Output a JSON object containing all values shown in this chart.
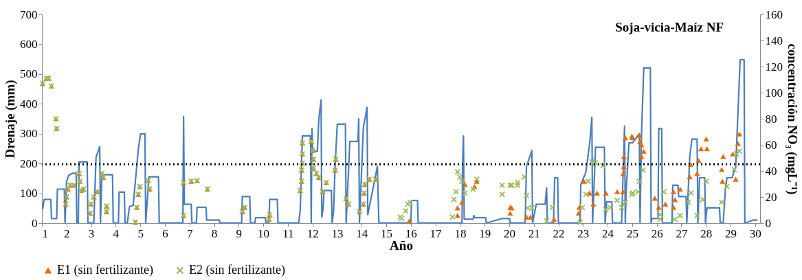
{
  "chart_data": {
    "type": "line",
    "title": "Soja-vicia-Maíz NF",
    "xlabel": "Año",
    "ylabel": "Drenaje (mm)",
    "y2label": "concentración NO₃ (mgL⁻¹)",
    "xlim": [
      1,
      30.2
    ],
    "xticks": [
      1,
      2,
      3,
      4,
      5,
      6,
      7,
      8,
      9,
      10,
      11,
      12,
      13,
      14,
      15,
      16,
      17,
      18,
      19,
      20,
      21,
      22,
      23,
      24,
      25,
      26,
      27,
      28,
      29,
      30
    ],
    "ylim": [
      0,
      700
    ],
    "yticks": [
      0,
      100,
      200,
      300,
      400,
      500,
      600,
      700
    ],
    "y2lim": [
      0,
      160
    ],
    "y2ticks": [
      0,
      20,
      40,
      60,
      80,
      100,
      120,
      140,
      160
    ],
    "grid": false,
    "legend": "bottom",
    "line_style": "solid",
    "ref_lines": [
      {
        "axis": "y2",
        "value": 45,
        "color": "#000000",
        "line_style": "dotted"
      }
    ],
    "series": [
      {
        "type": "line",
        "color": "#4a7ebb",
        "x": [
          1.03,
          1.09,
          1.36,
          1.39,
          1.6,
          1.63,
          1.91,
          1.94,
          2.0,
          2.09,
          2.24,
          2.39,
          2.42,
          2.48,
          2.51,
          2.84,
          2.87,
          3.11,
          3.2,
          3.35,
          3.38,
          3.44,
          3.87,
          3.9,
          4.11,
          4.14,
          4.35,
          4.38,
          4.47,
          4.56,
          4.71,
          4.92,
          5.01,
          5.19,
          5.22,
          5.35,
          5.74,
          5.77,
          6.73,
          6.76,
          6.79,
          7.07,
          7.1,
          7.28,
          7.31,
          7.67,
          7.7,
          8.21,
          8.24,
          9.12,
          9.15,
          9.45,
          9.48,
          9.66,
          9.69,
          10.08,
          10.11,
          10.23,
          10.26,
          10.57,
          10.6,
          11.44,
          11.5,
          11.59,
          11.92,
          11.95,
          11.98,
          12.01,
          12.2,
          12.26,
          12.35,
          12.38,
          12.44,
          12.47,
          12.77,
          12.8,
          12.86,
          12.92,
          13.01,
          13.34,
          13.37,
          13.52,
          13.85,
          13.88,
          13.91,
          14.07,
          14.22,
          14.25,
          14.64,
          14.7,
          16.0,
          16.03,
          16.27,
          16.3,
          18.08,
          18.11,
          18.14,
          18.17,
          18.53,
          18.56,
          18.59,
          19.04,
          19.07,
          19.71,
          20.01,
          20.04,
          20.65,
          20.7,
          20.92,
          20.95,
          21.1,
          21.46,
          21.52,
          21.55,
          21.8,
          21.85,
          21.97,
          22.0,
          22.88,
          22.91,
          23.12,
          23.27,
          23.36,
          23.39,
          23.51,
          23.87,
          23.9,
          23.96,
          24.17,
          24.2,
          24.57,
          24.69,
          24.72,
          24.75,
          24.87,
          25.02,
          25.29,
          25.32,
          25.38,
          25.47,
          25.74,
          25.77,
          25.8,
          26.05,
          26.08,
          26.2,
          26.23,
          26.62,
          26.65,
          26.86,
          26.89,
          27.19,
          27.22,
          27.34,
          27.43,
          27.64,
          27.67,
          27.74,
          27.95,
          27.98,
          28.04,
          28.55,
          28.58,
          28.7,
          28.79,
          28.85,
          29.06,
          29.21,
          29.39,
          29.55,
          29.58,
          29.76,
          29.91,
          30.1
        ],
        "values": [
          46,
          79,
          79,
          15,
          15,
          114,
          114,
          0,
          139,
          160,
          167,
          167,
          0,
          0,
          205,
          205,
          0,
          0,
          220,
          256,
          0,
          162,
          162,
          0,
          0,
          104,
          104,
          0,
          0,
          55,
          60,
          248,
          299,
          299,
          0,
          155,
          155,
          0,
          0,
          357,
          63,
          63,
          0,
          0,
          53,
          53,
          10,
          10,
          0,
          0,
          89,
          89,
          0,
          0,
          18,
          18,
          0,
          0,
          79,
          79,
          0,
          0,
          40,
          292,
          292,
          0,
          317,
          241,
          241,
          350,
          413,
          20,
          53,
          109,
          109,
          0,
          40,
          190,
          332,
          332,
          0,
          274,
          274,
          350,
          0,
          320,
          388,
          28,
          190,
          0,
          0,
          76,
          76,
          0,
          0,
          223,
          292,
          13,
          13,
          25,
          18,
          18,
          0,
          15,
          15,
          0,
          0,
          190,
          243,
          0,
          63,
          63,
          117,
          0,
          0,
          152,
          152,
          0,
          0,
          129,
          172,
          266,
          355,
          0,
          254,
          254,
          0,
          71,
          71,
          0,
          0,
          325,
          0,
          100,
          269,
          269,
          300,
          0,
          300,
          520,
          520,
          0,
          15,
          15,
          317,
          317,
          0,
          0,
          127,
          127,
          89,
          89,
          0,
          223,
          282,
          282,
          0,
          152,
          152,
          0,
          51,
          51,
          0,
          0,
          114,
          152,
          152,
          190,
          548,
          548,
          0,
          5,
          10,
          10
        ]
      },
      {
        "type": "scatter",
        "name": "E1 (sin fertilizante)",
        "color": "#e46c0a",
        "marker": "triangle",
        "axis": "y2",
        "x": [
          1.03,
          1.18,
          1.27,
          1.39,
          1.57,
          1.6,
          1.97,
          2.0,
          2.06,
          2.15,
          2.3,
          2.51,
          2.54,
          2.6,
          2.69,
          2.96,
          2.99,
          3.11,
          3.26,
          3.44,
          3.5,
          3.63,
          3.63,
          4.8,
          4.86,
          4.92,
          4.98,
          5.32,
          5.38,
          6.76,
          6.76,
          7.07,
          7.31,
          7.73,
          9.15,
          9.24,
          10.23,
          10.26,
          11.5,
          11.56,
          11.56,
          11.59,
          11.59,
          11.59,
          11.95,
          12.01,
          12.04,
          12.04,
          12.16,
          12.26,
          12.41,
          12.56,
          12.92,
          12.95,
          13.37,
          13.46,
          13.91,
          14.07,
          14.1,
          14.13,
          14.31,
          14.58,
          15.94,
          17.9,
          17.9,
          18.08,
          18.2,
          18.59,
          18.68,
          20.04,
          20.04,
          20.1,
          20.7,
          20.86,
          21.82,
          22.82,
          22.85,
          23.03,
          23.27,
          23.42,
          23.57,
          23.93,
          24.39,
          24.63,
          24.63,
          24.66,
          24.66,
          24.72,
          25.02,
          24.99,
          25.29,
          25.32,
          25.38,
          25.47,
          25.38,
          25.92,
          26.08,
          26.35,
          26.68,
          26.74,
          26.68,
          26.95,
          27.34,
          27.37,
          27.64,
          27.7,
          27.8,
          28.01,
          28.04,
          28.7,
          28.64,
          28.67,
          29.09,
          29.21,
          29.3,
          29.36
        ],
        "values": [
          107,
          111,
          111,
          105,
          80,
          72.5,
          14.5,
          20,
          26,
          29,
          29,
          38,
          32,
          25,
          26,
          7.5,
          14.5,
          20,
          24,
          38,
          35,
          13,
          8.7,
          0.6,
          12,
          22,
          28,
          32.5,
          26,
          5.8,
          31,
          32,
          32.5,
          26,
          8.7,
          12,
          2.9,
          6.4,
          25,
          32,
          40.6,
          46,
          53,
          61.5,
          62.6,
          55.7,
          49,
          42,
          38,
          35,
          24,
          31,
          40.6,
          49,
          19,
          14.5,
          8.7,
          14.5,
          23,
          29.6,
          33.6,
          33.6,
          1.7,
          5.8,
          11.6,
          16,
          29.6,
          28,
          32,
          7.5,
          12,
          11.6,
          4.6,
          4.6,
          2.9,
          7.5,
          12,
          32,
          23,
          14.5,
          23,
          23,
          24,
          24,
          37.7,
          43.5,
          51,
          65.5,
          65.5,
          66.7,
          67.3,
          62.6,
          60,
          55,
          51,
          19,
          12,
          14.5,
          24,
          18,
          12,
          26,
          35.4,
          45,
          38,
          48,
          57,
          64.4,
          57,
          51,
          41,
          32,
          53,
          33.6,
          61,
          68.4
        ]
      },
      {
        "type": "scatter",
        "name": "E2 (sin fertilizante)",
        "color": "#9bbb59",
        "marker": "cross",
        "axis": "y2",
        "x": [
          1.03,
          1.18,
          1.27,
          1.39,
          1.57,
          1.6,
          1.97,
          2.0,
          2.06,
          2.15,
          2.3,
          2.51,
          2.54,
          2.6,
          2.69,
          2.96,
          2.99,
          3.11,
          3.26,
          3.44,
          3.5,
          3.63,
          3.63,
          4.8,
          4.86,
          4.92,
          4.98,
          5.32,
          5.38,
          6.76,
          6.76,
          7.07,
          7.31,
          7.73,
          9.15,
          9.24,
          10.23,
          10.26,
          11.5,
          11.56,
          11.56,
          11.59,
          11.59,
          11.59,
          11.95,
          12.01,
          12.04,
          12.04,
          12.16,
          12.26,
          12.41,
          12.56,
          12.92,
          12.95,
          13.37,
          13.46,
          13.91,
          14.07,
          14.1,
          14.13,
          14.31,
          14.58,
          15.57,
          15.63,
          15.79,
          15.88,
          15.97,
          17.69,
          17.75,
          17.84,
          17.9,
          17.99,
          18.08,
          18.2,
          18.53,
          18.68,
          19.71,
          19.71,
          20.04,
          20.34,
          20.1,
          20.34,
          20.61,
          20.7,
          20.76,
          20.92,
          21.52,
          21.76,
          22.88,
          22.97,
          23.12,
          23.21,
          23.36,
          23.51,
          23.81,
          23.93,
          24.11,
          24.39,
          24.57,
          24.72,
          25.02,
          25.23,
          24.99,
          25.29,
          25.44,
          26.14,
          26.14,
          26.29,
          26.74,
          26.95,
          27.28,
          27.4,
          27.64,
          27.86,
          28.01,
          28.64,
          28.85,
          29.15,
          29.24,
          29.36
        ],
        "values": [
          107,
          111,
          111,
          105,
          80,
          72.5,
          14.5,
          20,
          26,
          29,
          29,
          38,
          32,
          25,
          26,
          7.5,
          14.5,
          20,
          24,
          38,
          35,
          13,
          8.7,
          0.6,
          12,
          22,
          28,
          32.5,
          26,
          5.8,
          31,
          32,
          32.5,
          26,
          8.7,
          12,
          2.9,
          6.4,
          25,
          32,
          40.6,
          46,
          53,
          61.5,
          62.6,
          55.7,
          49,
          42,
          38,
          35,
          24,
          31,
          40.6,
          49,
          19,
          14.5,
          8.7,
          14.5,
          23,
          29.6,
          33.6,
          33.6,
          4.6,
          3.5,
          9.3,
          14.5,
          16,
          4.6,
          18,
          24,
          39.4,
          35.4,
          32,
          23,
          26,
          33.6,
          29,
          22,
          29,
          31,
          29,
          29,
          35.4,
          21,
          11.6,
          11.6,
          1.7,
          12,
          0.6,
          12,
          22,
          32,
          47,
          46,
          44,
          10.4,
          12,
          17.4,
          12,
          16,
          23,
          24,
          22,
          32,
          40.6,
          6.4,
          2.9,
          24,
          2.9,
          5.8,
          16,
          23,
          5.8,
          18,
          32,
          16,
          28,
          41,
          53,
          55
        ]
      }
    ]
  }
}
